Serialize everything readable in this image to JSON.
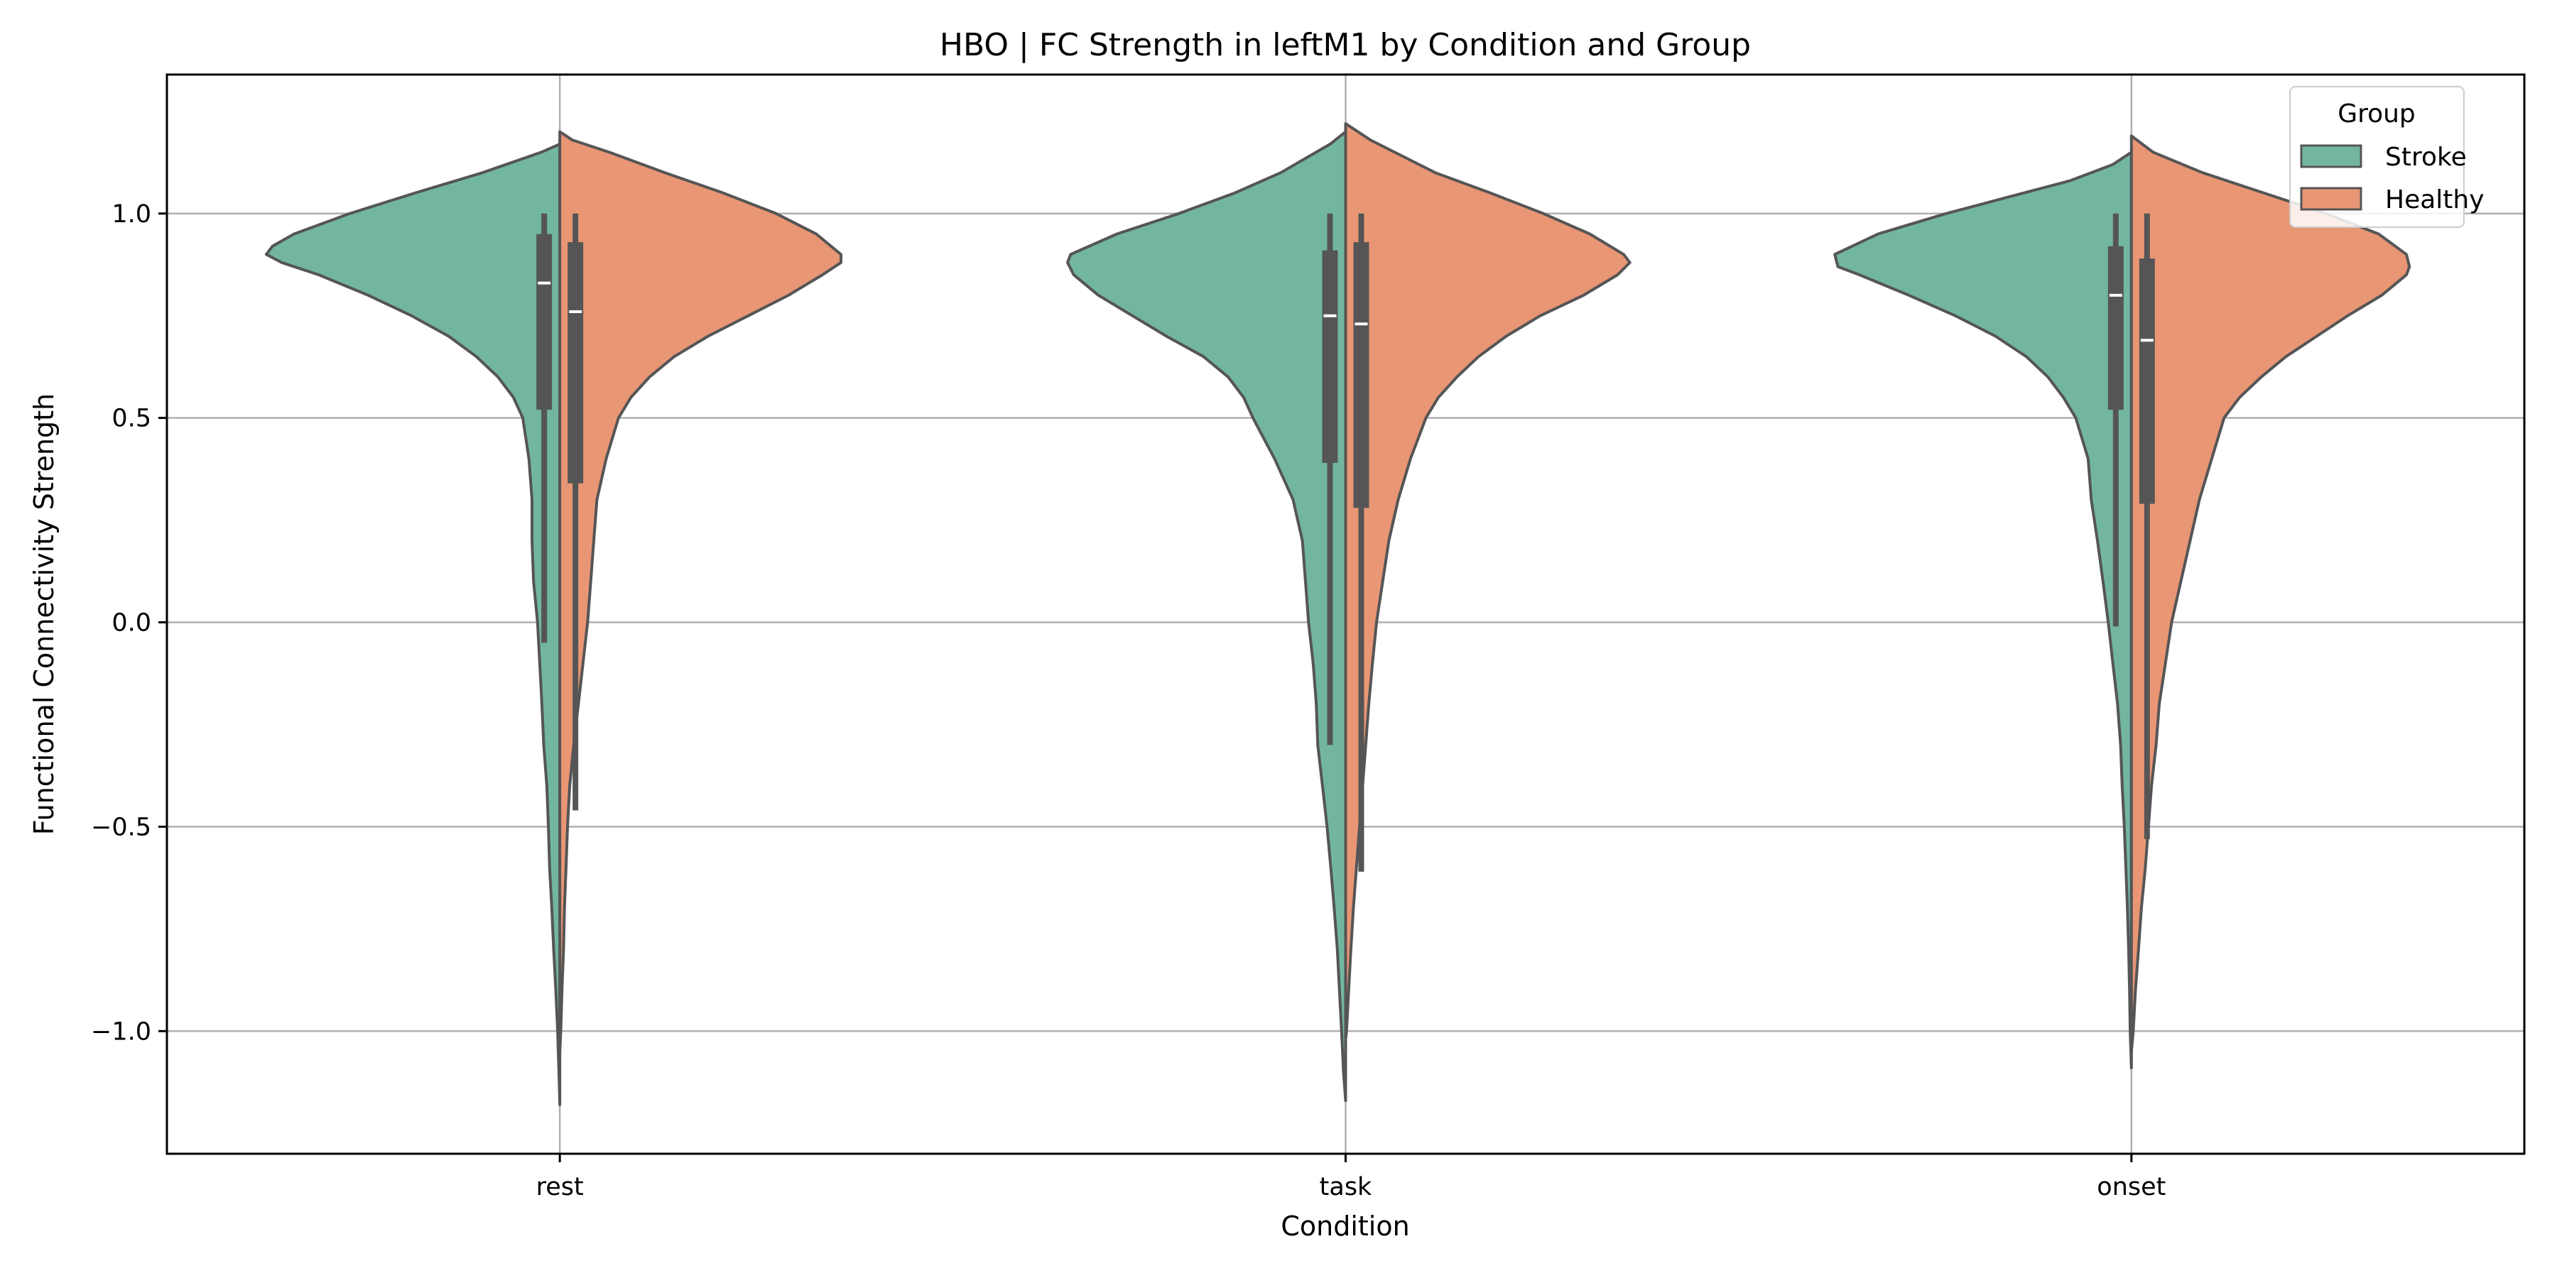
{
  "chart_data": {
    "type": "violin",
    "title": "HBO | FC Strength in leftM1 by Condition and Group",
    "xlabel": "Condition",
    "ylabel": "Functional Connectivity Strength",
    "categories": [
      "rest",
      "task",
      "onset"
    ],
    "ylim": [
      -1.3,
      1.34
    ],
    "yticks": [
      1.0,
      0.5,
      0.0,
      -0.5,
      -1.0
    ],
    "ytick_labels": [
      "1.0",
      "0.5",
      "0.0",
      "−0.5",
      "−1.0"
    ],
    "grid": true,
    "split": true,
    "legend": {
      "title": "Group",
      "placement": "top-right",
      "entries": [
        {
          "name": "Stroke",
          "color": "#72b6a1"
        },
        {
          "name": "Healthy",
          "color": "#e99675"
        }
      ]
    },
    "series": [
      {
        "name": "Stroke",
        "side": "left",
        "color": "#72b6a1",
        "groups": [
          {
            "category": "rest",
            "density": [
              [
                1.17,
                0.0
              ],
              [
                1.15,
                0.06
              ],
              [
                1.1,
                0.25
              ],
              [
                1.05,
                0.47
              ],
              [
                1.0,
                0.68
              ],
              [
                0.95,
                0.86
              ],
              [
                0.92,
                0.93
              ],
              [
                0.9,
                0.95
              ],
              [
                0.88,
                0.9
              ],
              [
                0.85,
                0.78
              ],
              [
                0.8,
                0.62
              ],
              [
                0.75,
                0.48
              ],
              [
                0.7,
                0.36
              ],
              [
                0.65,
                0.27
              ],
              [
                0.6,
                0.2
              ],
              [
                0.55,
                0.15
              ],
              [
                0.5,
                0.12
              ],
              [
                0.4,
                0.1
              ],
              [
                0.3,
                0.09
              ],
              [
                0.2,
                0.09
              ],
              [
                0.1,
                0.085
              ],
              [
                0.0,
                0.072
              ],
              [
                -0.1,
                0.065
              ],
              [
                -0.2,
                0.058
              ],
              [
                -0.3,
                0.052
              ],
              [
                -0.4,
                0.042
              ],
              [
                -0.5,
                0.037
              ],
              [
                -0.6,
                0.033
              ],
              [
                -0.7,
                0.026
              ],
              [
                -0.8,
                0.02
              ],
              [
                -0.9,
                0.013
              ],
              [
                -1.0,
                0.007
              ],
              [
                -1.1,
                0.003
              ],
              [
                -1.18,
                0.0
              ]
            ],
            "median": 0.83,
            "q1": 0.52,
            "q3": 0.95,
            "whisker_low": -0.05,
            "whisker_high": 1.0
          },
          {
            "category": "task",
            "density": [
              [
                1.2,
                0.0
              ],
              [
                1.17,
                0.05
              ],
              [
                1.1,
                0.21
              ],
              [
                1.05,
                0.36
              ],
              [
                1.0,
                0.54
              ],
              [
                0.95,
                0.74
              ],
              [
                0.9,
                0.89
              ],
              [
                0.88,
                0.9
              ],
              [
                0.85,
                0.88
              ],
              [
                0.8,
                0.8
              ],
              [
                0.75,
                0.69
              ],
              [
                0.7,
                0.58
              ],
              [
                0.65,
                0.46
              ],
              [
                0.6,
                0.38
              ],
              [
                0.55,
                0.33
              ],
              [
                0.5,
                0.3
              ],
              [
                0.4,
                0.23
              ],
              [
                0.3,
                0.17
              ],
              [
                0.2,
                0.14
              ],
              [
                0.1,
                0.13
              ],
              [
                0.0,
                0.12
              ],
              [
                -0.1,
                0.105
              ],
              [
                -0.2,
                0.095
              ],
              [
                -0.3,
                0.09
              ],
              [
                -0.4,
                0.075
              ],
              [
                -0.5,
                0.06
              ],
              [
                -0.6,
                0.048
              ],
              [
                -0.7,
                0.037
              ],
              [
                -0.8,
                0.027
              ],
              [
                -0.9,
                0.02
              ],
              [
                -1.0,
                0.013
              ],
              [
                -1.1,
                0.007
              ],
              [
                -1.17,
                0.0
              ]
            ],
            "median": 0.75,
            "q1": 0.39,
            "q3": 0.91,
            "whisker_low": -0.3,
            "whisker_high": 1.0
          },
          {
            "category": "onset",
            "density": [
              [
                1.15,
                0.0
              ],
              [
                1.12,
                0.06
              ],
              [
                1.08,
                0.2
              ],
              [
                1.04,
                0.4
              ],
              [
                1.0,
                0.6
              ],
              [
                0.95,
                0.82
              ],
              [
                0.9,
                0.96
              ],
              [
                0.87,
                0.95
              ],
              [
                0.85,
                0.88
              ],
              [
                0.8,
                0.72
              ],
              [
                0.75,
                0.57
              ],
              [
                0.7,
                0.44
              ],
              [
                0.65,
                0.34
              ],
              [
                0.6,
                0.27
              ],
              [
                0.55,
                0.22
              ],
              [
                0.5,
                0.18
              ],
              [
                0.4,
                0.14
              ],
              [
                0.3,
                0.13
              ],
              [
                0.2,
                0.11
              ],
              [
                0.1,
                0.092
              ],
              [
                0.0,
                0.075
              ],
              [
                -0.1,
                0.06
              ],
              [
                -0.2,
                0.045
              ],
              [
                -0.3,
                0.035
              ],
              [
                -0.4,
                0.03
              ],
              [
                -0.5,
                0.023
              ],
              [
                -0.6,
                0.018
              ],
              [
                -0.7,
                0.013
              ],
              [
                -0.8,
                0.009
              ],
              [
                -0.9,
                0.006
              ],
              [
                -1.0,
                0.004
              ],
              [
                -1.09,
                0.0
              ]
            ],
            "median": 0.8,
            "q1": 0.52,
            "q3": 0.92,
            "whisker_low": -0.01,
            "whisker_high": 1.0
          }
        ]
      },
      {
        "name": "Healthy",
        "side": "right",
        "color": "#e99675",
        "groups": [
          {
            "category": "rest",
            "density": [
              [
                1.2,
                0.0
              ],
              [
                1.18,
                0.04
              ],
              [
                1.15,
                0.16
              ],
              [
                1.1,
                0.34
              ],
              [
                1.05,
                0.53
              ],
              [
                1.0,
                0.7
              ],
              [
                0.95,
                0.83
              ],
              [
                0.9,
                0.91
              ],
              [
                0.88,
                0.91
              ],
              [
                0.85,
                0.85
              ],
              [
                0.8,
                0.74
              ],
              [
                0.75,
                0.61
              ],
              [
                0.7,
                0.48
              ],
              [
                0.65,
                0.37
              ],
              [
                0.6,
                0.29
              ],
              [
                0.55,
                0.23
              ],
              [
                0.5,
                0.19
              ],
              [
                0.4,
                0.15
              ],
              [
                0.3,
                0.12
              ],
              [
                0.2,
                0.11
              ],
              [
                0.1,
                0.1
              ],
              [
                0.0,
                0.09
              ],
              [
                -0.1,
                0.075
              ],
              [
                -0.2,
                0.06
              ],
              [
                -0.3,
                0.045
              ],
              [
                -0.4,
                0.032
              ],
              [
                -0.5,
                0.025
              ],
              [
                -0.6,
                0.02
              ],
              [
                -0.7,
                0.015
              ],
              [
                -0.8,
                0.012
              ],
              [
                -0.9,
                0.007
              ],
              [
                -1.0,
                0.003
              ],
              [
                -1.05,
                0.0
              ]
            ],
            "median": 0.76,
            "q1": 0.34,
            "q3": 0.93,
            "whisker_low": -0.46,
            "whisker_high": 1.0
          },
          {
            "category": "task",
            "density": [
              [
                1.22,
                0.0
              ],
              [
                1.18,
                0.08
              ],
              [
                1.1,
                0.29
              ],
              [
                1.05,
                0.47
              ],
              [
                1.0,
                0.64
              ],
              [
                0.95,
                0.79
              ],
              [
                0.9,
                0.9
              ],
              [
                0.88,
                0.92
              ],
              [
                0.85,
                0.88
              ],
              [
                0.8,
                0.77
              ],
              [
                0.75,
                0.63
              ],
              [
                0.7,
                0.52
              ],
              [
                0.65,
                0.43
              ],
              [
                0.6,
                0.36
              ],
              [
                0.55,
                0.3
              ],
              [
                0.5,
                0.26
              ],
              [
                0.4,
                0.21
              ],
              [
                0.3,
                0.17
              ],
              [
                0.2,
                0.14
              ],
              [
                0.1,
                0.12
              ],
              [
                0.0,
                0.1
              ],
              [
                -0.1,
                0.087
              ],
              [
                -0.2,
                0.075
              ],
              [
                -0.3,
                0.065
              ],
              [
                -0.4,
                0.055
              ],
              [
                -0.5,
                0.045
              ],
              [
                -0.6,
                0.035
              ],
              [
                -0.7,
                0.025
              ],
              [
                -0.8,
                0.017
              ],
              [
                -0.9,
                0.01
              ],
              [
                -1.0,
                0.003
              ],
              [
                -1.02,
                0.0
              ]
            ],
            "median": 0.73,
            "q1": 0.28,
            "q3": 0.93,
            "whisker_low": -0.61,
            "whisker_high": 1.0
          },
          {
            "category": "onset",
            "density": [
              [
                1.19,
                0.0
              ],
              [
                1.15,
                0.07
              ],
              [
                1.1,
                0.23
              ],
              [
                1.05,
                0.43
              ],
              [
                1.0,
                0.63
              ],
              [
                0.95,
                0.8
              ],
              [
                0.9,
                0.89
              ],
              [
                0.87,
                0.9
              ],
              [
                0.85,
                0.89
              ],
              [
                0.8,
                0.81
              ],
              [
                0.75,
                0.7
              ],
              [
                0.7,
                0.6
              ],
              [
                0.65,
                0.5
              ],
              [
                0.6,
                0.42
              ],
              [
                0.55,
                0.35
              ],
              [
                0.5,
                0.3
              ],
              [
                0.4,
                0.26
              ],
              [
                0.3,
                0.22
              ],
              [
                0.2,
                0.19
              ],
              [
                0.1,
                0.16
              ],
              [
                0.0,
                0.13
              ],
              [
                -0.1,
                0.11
              ],
              [
                -0.2,
                0.09
              ],
              [
                -0.3,
                0.08
              ],
              [
                -0.4,
                0.065
              ],
              [
                -0.5,
                0.055
              ],
              [
                -0.6,
                0.045
              ],
              [
                -0.7,
                0.032
              ],
              [
                -0.8,
                0.023
              ],
              [
                -0.9,
                0.013
              ],
              [
                -1.0,
                0.006
              ],
              [
                -1.05,
                0.0
              ]
            ],
            "median": 0.69,
            "q1": 0.29,
            "q3": 0.89,
            "whisker_low": -0.53,
            "whisker_high": 1.0
          }
        ]
      }
    ]
  }
}
